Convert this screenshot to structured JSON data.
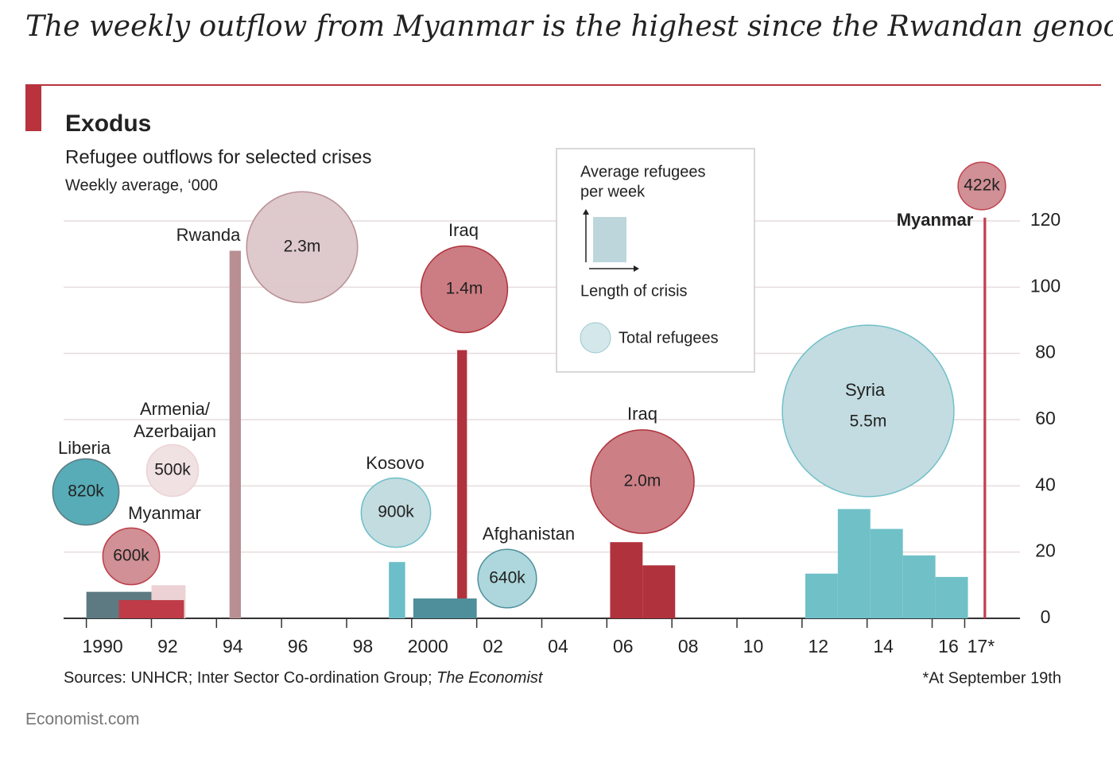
{
  "headline": "The weekly outflow from Myanmar is the highest since the Rwandan genocide",
  "chart_data": {
    "type": "crisis-bubbles",
    "title": "Exodus",
    "subtitle": "Refugee outflows for selected crises",
    "y_label": "Weekly average, ‘000",
    "xlim": [
      1989.3,
      2018.7
    ],
    "xticks": [
      {
        "value": 1990,
        "label": "1990"
      },
      {
        "value": 1992,
        "label": "92"
      },
      {
        "value": 1994,
        "label": "94"
      },
      {
        "value": 1996,
        "label": "96"
      },
      {
        "value": 1998,
        "label": "98"
      },
      {
        "value": 2000,
        "label": "2000"
      },
      {
        "value": 2002,
        "label": "02"
      },
      {
        "value": 2004,
        "label": "04"
      },
      {
        "value": 2006,
        "label": "06"
      },
      {
        "value": 2008,
        "label": "08"
      },
      {
        "value": 2010,
        "label": "10"
      },
      {
        "value": 2012,
        "label": "12"
      },
      {
        "value": 2014,
        "label": "14"
      },
      {
        "value": 2016,
        "label": "16"
      },
      {
        "value": 2017,
        "label": "17*"
      }
    ],
    "ylim": [
      0,
      120
    ],
    "yticks": [
      0,
      20,
      40,
      60,
      80,
      100,
      120
    ],
    "grid": true,
    "crises": [
      {
        "name": "Liberia",
        "bar_color": "#5d7a82",
        "bubble_color": "#4ea8b3",
        "segments": [
          {
            "start": 1990,
            "end": 1992,
            "value": 8
          }
        ],
        "total": 820,
        "total_label": "820k"
      },
      {
        "name": "Armenia/Azerbaijan",
        "bar_color": "#ecd2d5",
        "bubble_color": "#efdfe0",
        "segments": [
          {
            "start": 1992,
            "end": 1993.05,
            "value": 10
          }
        ],
        "total": 500,
        "total_label": "500k"
      },
      {
        "name": "Myanmar",
        "bar_color": "#be3b47",
        "bubble_color": "#cd8a8f",
        "segments": [
          {
            "start": 1991,
            "end": 1993,
            "value": 5.5
          }
        ],
        "total": 600,
        "total_label": "600k"
      },
      {
        "name": "Rwanda",
        "bar_color": "#b98f94",
        "bubble_color": "#dcc6c9",
        "segments": [
          {
            "start": 1994.4,
            "end": 1994.75,
            "value": 111
          }
        ],
        "total": 2300,
        "total_label": "2.3m"
      },
      {
        "name": "Iraq",
        "bar_color": "#b0323c",
        "bubble_color": "#c9767c",
        "segments": [
          {
            "start": 2001.4,
            "end": 2001.7,
            "value": 81
          }
        ],
        "total": 1400,
        "total_label": "1.4m"
      },
      {
        "name": "Kosovo",
        "bar_color": "#6cbec8",
        "bubble_color": "#c0dade",
        "segments": [
          {
            "start": 1999.3,
            "end": 1999.8,
            "value": 17
          }
        ],
        "total": 900,
        "total_label": "900k"
      },
      {
        "name": "Afghanistan",
        "bar_color": "#4f8f9b",
        "bubble_color": "#a9d5da",
        "segments": [
          {
            "start": 2000.05,
            "end": 2002,
            "value": 6
          }
        ],
        "total": 640,
        "total_label": "640k"
      },
      {
        "name": "Iraq",
        "bar_color": "#b0323c",
        "bubble_color": "#c9787e",
        "segments": [
          {
            "start": 2006.1,
            "end": 2007.1,
            "value": 23
          },
          {
            "start": 2007.1,
            "end": 2008.1,
            "value": 16
          }
        ],
        "total": 2000,
        "total_label": "2.0m"
      },
      {
        "name": "Syria",
        "bar_color": "#70c0c8",
        "bubble_color": "#c0dadf",
        "segments": [
          {
            "start": 2012.1,
            "end": 2013.1,
            "value": 13.5
          },
          {
            "start": 2013.1,
            "end": 2014.1,
            "value": 33
          },
          {
            "start": 2014.1,
            "end": 2015.1,
            "value": 27
          },
          {
            "start": 2015.1,
            "end": 2016.1,
            "value": 19
          },
          {
            "start": 2016.1,
            "end": 2017.1,
            "value": 12.5
          }
        ],
        "total": 5500,
        "total_label": "5.5m"
      },
      {
        "name": "Myanmar",
        "bar_color": "#c0434f",
        "bubble_color": "#cd8a8f",
        "segments": [
          {
            "start": 2017.58,
            "end": 2017.66,
            "value": 121
          }
        ],
        "total": 422,
        "total_label": "422k"
      }
    ],
    "legend": {
      "bar_title": [
        "Average refugees",
        "per week"
      ],
      "bar_axis": "Length of crisis",
      "bubble_title": "Total refugees"
    },
    "sources": "Sources: UNHCR; Inter Sector Co-ordination Group; ",
    "sources_italic": "The Economist",
    "footnote": "*At September 19th"
  },
  "brand": "Economist.com"
}
